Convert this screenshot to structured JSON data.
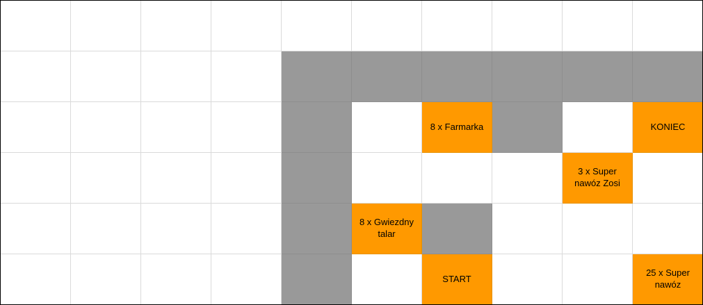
{
  "colors": {
    "empty": "#ffffff",
    "wall": "#999999",
    "goal": "#ff9900",
    "gridline": "#dadada"
  },
  "grid": {
    "rows": [
      [
        {
          "t": "e"
        },
        {
          "t": "e"
        },
        {
          "t": "e"
        },
        {
          "t": "e"
        },
        {
          "t": "e"
        },
        {
          "t": "e"
        },
        {
          "t": "e"
        },
        {
          "t": "e"
        },
        {
          "t": "e"
        },
        {
          "t": "e"
        }
      ],
      [
        {
          "t": "e"
        },
        {
          "t": "e"
        },
        {
          "t": "e"
        },
        {
          "t": "e"
        },
        {
          "t": "w"
        },
        {
          "t": "w"
        },
        {
          "t": "w"
        },
        {
          "t": "w"
        },
        {
          "t": "w"
        },
        {
          "t": "w"
        }
      ],
      [
        {
          "t": "e"
        },
        {
          "t": "e"
        },
        {
          "t": "e"
        },
        {
          "t": "e"
        },
        {
          "t": "w"
        },
        {
          "t": "e"
        },
        {
          "t": "g",
          "text": "8 x Farmarka"
        },
        {
          "t": "w"
        },
        {
          "t": "e"
        },
        {
          "t": "g",
          "text": "KONIEC"
        }
      ],
      [
        {
          "t": "e"
        },
        {
          "t": "e"
        },
        {
          "t": "e"
        },
        {
          "t": "e"
        },
        {
          "t": "w"
        },
        {
          "t": "e"
        },
        {
          "t": "e"
        },
        {
          "t": "e"
        },
        {
          "t": "g",
          "text": "3 x Super nawóz Zosi"
        },
        {
          "t": "e"
        }
      ],
      [
        {
          "t": "e"
        },
        {
          "t": "e"
        },
        {
          "t": "e"
        },
        {
          "t": "e"
        },
        {
          "t": "w"
        },
        {
          "t": "g",
          "text": "8 x Gwiezdny talar"
        },
        {
          "t": "w"
        },
        {
          "t": "e"
        },
        {
          "t": "e"
        },
        {
          "t": "e"
        }
      ],
      [
        {
          "t": "e"
        },
        {
          "t": "e"
        },
        {
          "t": "e"
        },
        {
          "t": "e"
        },
        {
          "t": "w"
        },
        {
          "t": "e"
        },
        {
          "t": "g",
          "text": "START"
        },
        {
          "t": "e"
        },
        {
          "t": "e"
        },
        {
          "t": "g",
          "text": "25 x Super nawóz"
        }
      ]
    ]
  }
}
